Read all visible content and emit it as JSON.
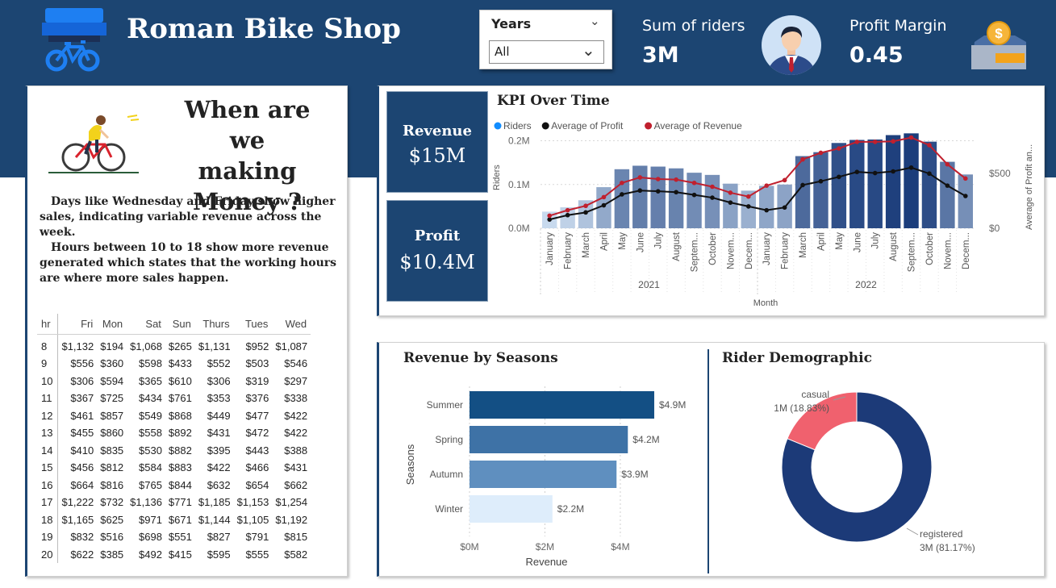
{
  "header": {
    "title": "Roman Bike Shop",
    "logo_icon": "bike-shop-icon",
    "years_slicer": {
      "title": "Years",
      "selected": "All"
    },
    "sum_riders": {
      "label": "Sum of riders",
      "value": "3M",
      "icon": "person-icon"
    },
    "profit_margin": {
      "label": "Profit Margin",
      "value": "0.45",
      "icon": "money-icon"
    }
  },
  "left_panel": {
    "title_lines": [
      "When are",
      "we making",
      "Money ?"
    ],
    "illustration_icon": "cyclist-icon",
    "insight_1": "Days like Wednesday and Friday show higher sales, indicating variable revenue across the week.",
    "insight_2": "Hours between 10 to 18 show more revenue generated which states that the working hours are where more sales happen.",
    "matrix": {
      "columns": [
        "hr",
        "Fri",
        "Mon",
        "Sat",
        "Sun",
        "Thurs",
        "Tues",
        "Wed"
      ],
      "rows": [
        [
          "8",
          "$1,132",
          "$194",
          "$1,068",
          "$265",
          "$1,131",
          "$952",
          "$1,087"
        ],
        [
          "9",
          "$556",
          "$360",
          "$598",
          "$433",
          "$552",
          "$503",
          "$546"
        ],
        [
          "10",
          "$306",
          "$594",
          "$365",
          "$610",
          "$306",
          "$319",
          "$297"
        ],
        [
          "11",
          "$367",
          "$725",
          "$434",
          "$761",
          "$353",
          "$376",
          "$338"
        ],
        [
          "12",
          "$461",
          "$857",
          "$549",
          "$868",
          "$449",
          "$477",
          "$422"
        ],
        [
          "13",
          "$455",
          "$860",
          "$558",
          "$892",
          "$431",
          "$472",
          "$422"
        ],
        [
          "14",
          "$410",
          "$835",
          "$530",
          "$882",
          "$395",
          "$443",
          "$388"
        ],
        [
          "15",
          "$456",
          "$812",
          "$584",
          "$883",
          "$422",
          "$466",
          "$431"
        ],
        [
          "16",
          "$664",
          "$816",
          "$765",
          "$844",
          "$632",
          "$654",
          "$662"
        ],
        [
          "17",
          "$1,222",
          "$732",
          "$1,136",
          "$771",
          "$1,185",
          "$1,153",
          "$1,254"
        ],
        [
          "18",
          "$1,165",
          "$625",
          "$971",
          "$671",
          "$1,144",
          "$1,105",
          "$1,192"
        ],
        [
          "19",
          "$832",
          "$516",
          "$698",
          "$551",
          "$827",
          "$791",
          "$815"
        ],
        [
          "20",
          "$622",
          "$385",
          "$492",
          "$415",
          "$595",
          "$555",
          "$582"
        ]
      ]
    }
  },
  "cards": {
    "revenue": {
      "label": "Revenue",
      "value": "$15M"
    },
    "profit": {
      "label": "Profit",
      "value": "$10.4M"
    }
  },
  "chart_data": [
    {
      "type": "bar",
      "title": "KPI Over Time",
      "xlabel": "Month",
      "ylabel": "Riders",
      "y2label": "Average of Profit an...",
      "legend_placement": "top-left",
      "categories": [
        "January",
        "February",
        "March",
        "April",
        "May",
        "June",
        "July",
        "August",
        "Septem...",
        "October",
        "Novem...",
        "Decem...",
        "January",
        "February",
        "March",
        "April",
        "May",
        "June",
        "July",
        "August",
        "Septem...",
        "October",
        "Novem...",
        "Decem..."
      ],
      "year_groups": [
        {
          "label": "2021",
          "count": 12
        },
        {
          "label": "2022",
          "count": 12
        }
      ],
      "ylim": [
        0,
        225000
      ],
      "y_ticks": [
        {
          "v": 0,
          "label": "0.0M"
        },
        {
          "v": 100000,
          "label": "0.1M"
        },
        {
          "v": 200000,
          "label": "0.2M"
        }
      ],
      "y2lim": [
        0,
        900
      ],
      "y2_ticks": [
        {
          "v": 0,
          "label": "$0"
        },
        {
          "v": 500,
          "label": "$500"
        }
      ],
      "series": [
        {
          "name": "Riders",
          "kind": "bar",
          "color": "#118dff",
          "values": [
            38000,
            48000,
            64000,
            94000,
            135000,
            143000,
            141000,
            137000,
            127000,
            122000,
            102000,
            86000,
            97000,
            100000,
            165000,
            174000,
            195000,
            202000,
            203000,
            213000,
            217000,
            198000,
            152000,
            123000
          ]
        },
        {
          "name": "Average of Profit",
          "kind": "line",
          "color": "#111111",
          "values": [
            80,
            120,
            145,
            210,
            310,
            345,
            338,
            330,
            305,
            280,
            235,
            200,
            165,
            190,
            395,
            430,
            470,
            515,
            505,
            520,
            555,
            500,
            390,
            295
          ]
        },
        {
          "name": "Average of Revenue",
          "kind": "line",
          "color": "#c0202e",
          "values": [
            115,
            165,
            205,
            285,
            415,
            465,
            450,
            445,
            415,
            380,
            325,
            290,
            390,
            440,
            630,
            690,
            730,
            790,
            790,
            795,
            830,
            760,
            585,
            455
          ]
        }
      ]
    },
    {
      "type": "bar",
      "orientation": "horizontal",
      "title": "Revenue by Seasons",
      "xlabel": "Revenue",
      "ylabel": "Seasons",
      "categories": [
        "Summer",
        "Spring",
        "Autumn",
        "Winter"
      ],
      "values": [
        4.9,
        4.2,
        3.9,
        2.2
      ],
      "value_labels": [
        "$4.9M",
        "$4.2M",
        "$3.9M",
        "$2.2M"
      ],
      "colors": [
        "#134f84",
        "#3e72a6",
        "#5f8fbf",
        "#deedfb"
      ],
      "xlim": [
        0,
        5.2
      ],
      "x_ticks": [
        {
          "v": 0,
          "label": "$0M"
        },
        {
          "v": 2,
          "label": "$2M"
        },
        {
          "v": 4,
          "label": "$4M"
        }
      ]
    },
    {
      "type": "pie",
      "donut": true,
      "title": "Rider Demographic",
      "slices": [
        {
          "label": "casual",
          "value_label": "1M (18.83%)",
          "value": 18.83,
          "color": "#f0616e"
        },
        {
          "label": "registered",
          "value_label": "3M (81.17%)",
          "value": 81.17,
          "color": "#1c3a78"
        }
      ]
    }
  ]
}
